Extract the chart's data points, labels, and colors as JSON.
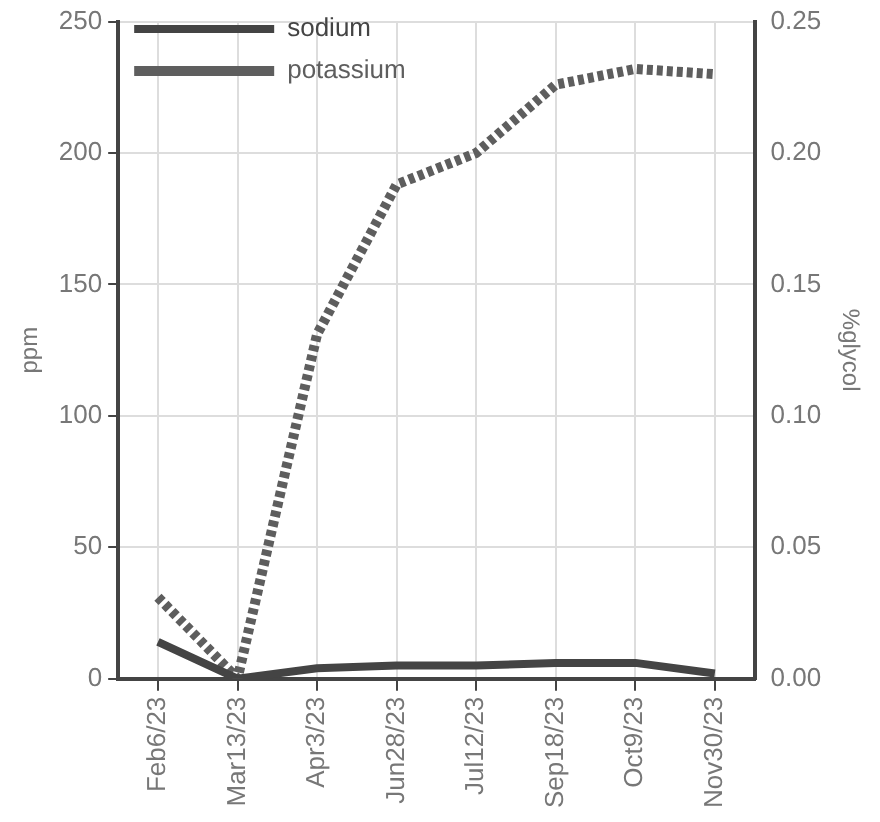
{
  "chart_data": {
    "type": "line",
    "categories": [
      "Feb6/23",
      "Mar13/23",
      "Apr3/23",
      "Jun28/23",
      "Jul12/23",
      "Sep18/23",
      "Oct9/23",
      "Nov30/23"
    ],
    "series": [
      {
        "name": "sodium",
        "color": "#444444",
        "line_style": "solid",
        "values": [
          14,
          0,
          4,
          5,
          5,
          6,
          6,
          2
        ]
      },
      {
        "name": "potassium",
        "color": "#5e5e5e",
        "line_style": "dotted",
        "values": [
          31,
          0,
          131,
          188,
          200,
          226,
          232,
          230
        ]
      }
    ],
    "ylabel": "ppm",
    "ylim": [
      0,
      250
    ],
    "yticks": [
      0,
      50,
      100,
      150,
      200,
      250
    ],
    "y2label": "%glycol",
    "y2lim": [
      0,
      0.25
    ],
    "y2ticks": [
      {
        "value": 0,
        "label": "0.00"
      },
      {
        "value": 0.05,
        "label": "0.05"
      },
      {
        "value": 0.1,
        "label": "0.10"
      },
      {
        "value": 0.15,
        "label": "0.15"
      },
      {
        "value": 0.2,
        "label": "0.20"
      },
      {
        "value": 0.25,
        "label": "0.25"
      }
    ],
    "grid": true,
    "legend": "top left",
    "marker": "none"
  }
}
